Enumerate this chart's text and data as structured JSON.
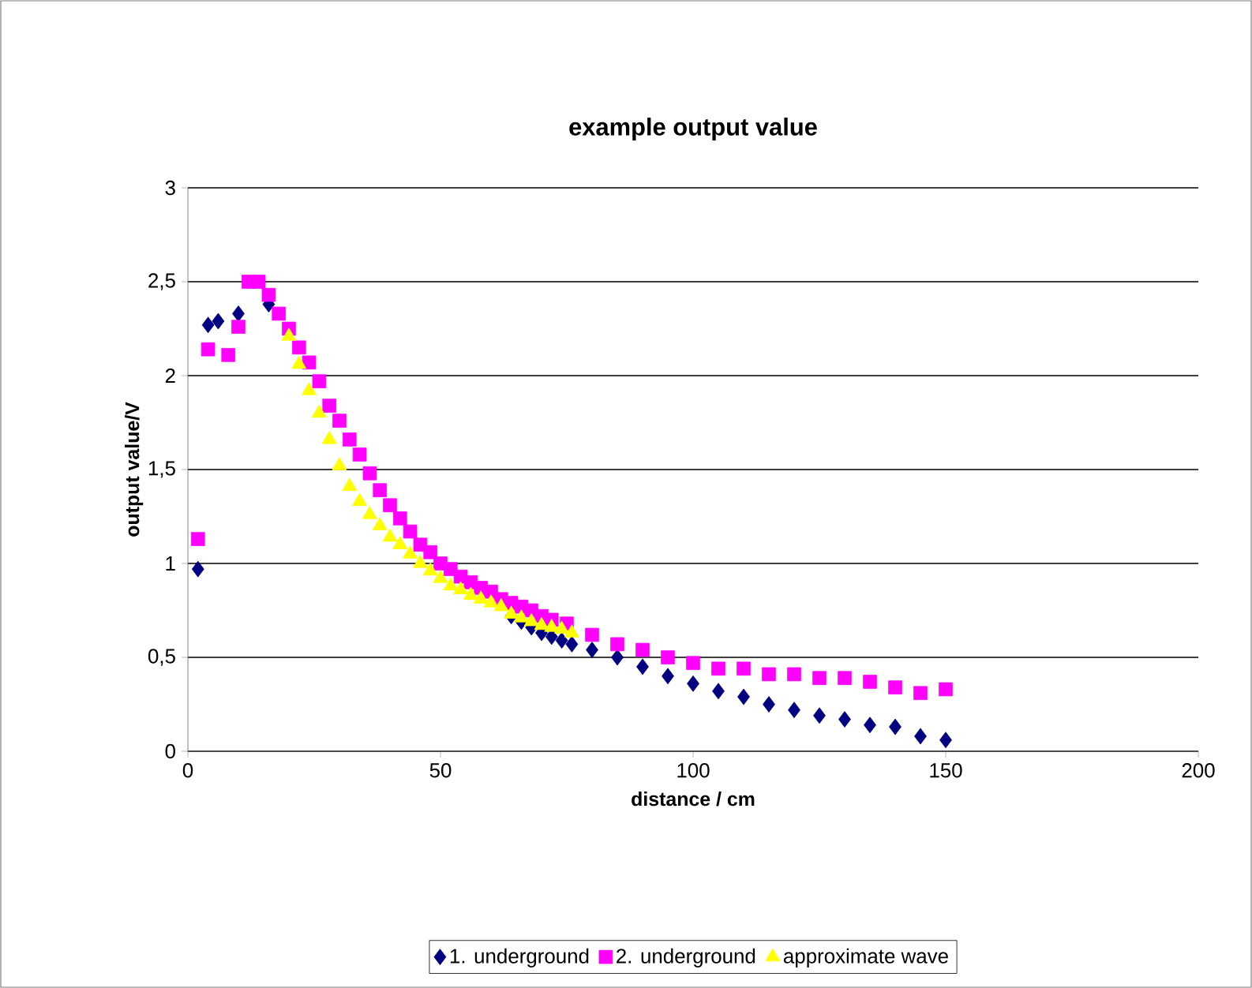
{
  "chart_data": {
    "type": "scatter",
    "title": "example output value",
    "xlabel": "distance / cm",
    "ylabel": "output value/V",
    "xlim": [
      0,
      200
    ],
    "xticks": [
      0,
      50,
      100,
      150,
      200
    ],
    "ylim": [
      0,
      3
    ],
    "yticks": [
      0,
      {
        "value": 0.5,
        "label": "0,5"
      },
      1,
      {
        "value": 1.5,
        "label": "1,5"
      },
      2,
      {
        "value": 2.5,
        "label": "2,5"
      },
      3
    ],
    "grid": "y",
    "legend": "bottom",
    "series": [
      {
        "name": "1. underground",
        "color": "#000080",
        "marker": "diamond",
        "x": [
          2,
          4,
          6,
          10,
          16,
          64,
          66,
          68,
          70,
          72,
          74,
          76,
          80,
          85,
          90,
          95,
          100,
          105,
          110,
          115,
          120,
          125,
          130,
          135,
          140,
          145,
          150
        ],
        "values": [
          0.97,
          2.27,
          2.29,
          2.33,
          2.38,
          0.72,
          0.69,
          0.66,
          0.63,
          0.61,
          0.59,
          0.57,
          0.54,
          0.5,
          0.45,
          0.4,
          0.36,
          0.32,
          0.29,
          0.25,
          0.22,
          0.19,
          0.17,
          0.14,
          0.13,
          0.08,
          0.06
        ]
      },
      {
        "name": "2. underground",
        "color": "#ff00ff",
        "marker": "square",
        "x": [
          2,
          4,
          8,
          10,
          12,
          14,
          16,
          18,
          20,
          22,
          24,
          26,
          28,
          30,
          32,
          34,
          36,
          38,
          40,
          42,
          44,
          46,
          48,
          50,
          52,
          54,
          56,
          58,
          60,
          62,
          64,
          66,
          68,
          70,
          72,
          75,
          80,
          85,
          90,
          95,
          100,
          105,
          110,
          115,
          120,
          125,
          130,
          135,
          140,
          145,
          150
        ],
        "values": [
          1.13,
          2.14,
          2.11,
          2.26,
          2.5,
          2.5,
          2.43,
          2.33,
          2.25,
          2.15,
          2.07,
          1.97,
          1.84,
          1.76,
          1.66,
          1.58,
          1.48,
          1.39,
          1.31,
          1.24,
          1.17,
          1.1,
          1.06,
          1.0,
          0.97,
          0.93,
          0.9,
          0.87,
          0.85,
          0.81,
          0.79,
          0.77,
          0.75,
          0.72,
          0.7,
          0.68,
          0.62,
          0.57,
          0.54,
          0.5,
          0.47,
          0.44,
          0.44,
          0.41,
          0.41,
          0.39,
          0.39,
          0.37,
          0.34,
          0.31,
          0.33
        ]
      },
      {
        "name": "approximate wave",
        "color": "#ffff00",
        "marker": "triangle",
        "x": [
          20,
          22,
          24,
          26,
          28,
          30,
          32,
          34,
          36,
          38,
          40,
          42,
          44,
          46,
          48,
          50,
          52,
          54,
          56,
          58,
          60,
          62,
          64,
          66,
          68,
          70,
          72,
          74,
          76
        ],
        "values": [
          2.21,
          2.06,
          1.92,
          1.8,
          1.66,
          1.52,
          1.41,
          1.33,
          1.26,
          1.2,
          1.14,
          1.1,
          1.05,
          1.0,
          0.96,
          0.92,
          0.88,
          0.86,
          0.83,
          0.81,
          0.79,
          0.77,
          0.73,
          0.71,
          0.69,
          0.67,
          0.66,
          0.65,
          0.63
        ]
      }
    ]
  }
}
